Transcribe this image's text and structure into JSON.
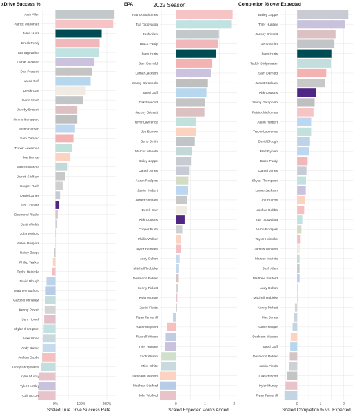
{
  "suptitle": "2022 Season",
  "chart_data": [
    {
      "type": "bar",
      "title": "xDrive Success %",
      "xlabel": "Scaled True Drive Success Rate",
      "ylabel": "",
      "xlim": [
        -0.55,
        2.35
      ],
      "xticks": [
        0,
        1,
        2
      ],
      "xtick_labels": [
        "0%",
        "100%",
        "200%"
      ],
      "categories": [
        "Josh Allen",
        "Patrick Mahomes",
        "Jalen Hurts",
        "Brock Purdy",
        "Tua Tagovailoa",
        "Lamar Jackson",
        "Dak Prescott",
        "Jared Goff",
        "Derek Carr",
        "Geno Smith",
        "Jacoby Brissett",
        "Jimmy Garoppolo",
        "Justin Herbert",
        "Sam Darnold",
        "Trevor Lawrence",
        "Joe Burrow",
        "Marcus Mariota",
        "Jarrett Stidham",
        "Cooper Rush",
        "Daniel Jones",
        "Kirk Cousins",
        "Desmond Ridder",
        "Justin Fields",
        "John Wolford",
        "Aaron Rodgers",
        "Bailey Zappe",
        "Phillip Walker",
        "Taylor Heinicke",
        "David Blough",
        "Matthew Stafford",
        "Gardner Minshew",
        "Kenny Pickett",
        "Sam Howell",
        "Skylar Thompson",
        "Mike White",
        "Andy Dalton",
        "Joshua Dobbs",
        "Teddy Bridgewater",
        "Kyler Murray",
        "Tyler Huntley",
        "Colt McCoy"
      ],
      "values": [
        2.3,
        2.25,
        1.8,
        1.72,
        1.7,
        1.52,
        1.42,
        1.37,
        1.18,
        1.08,
        0.85,
        0.85,
        0.76,
        0.7,
        0.66,
        0.58,
        0.45,
        0.37,
        0.28,
        0.18,
        0.15,
        0.09,
        0.07,
        0.0,
        0.0,
        -0.05,
        -0.1,
        -0.12,
        -0.35,
        -0.38,
        -0.4,
        -0.42,
        -0.44,
        -0.46,
        -0.48,
        -0.5,
        -0.52,
        -0.55,
        -0.65,
        -0.67,
        -0.68
      ],
      "colors": [
        "#c3c8cb",
        "#f7c4c6",
        "#004c54",
        "#f0b8ba",
        "#c0e2e1",
        "#cbc3dd",
        "#c4c4c4",
        "#b7d7ee",
        "#f0ece4",
        "#c2c5c8",
        "#dcc0c2",
        "#bfbfbf",
        "#bcd7ef",
        "#f2b3b2",
        "#c2e0dc",
        "#fcd3c0",
        "#c3d8d7",
        "#c8c8c8",
        "#d0d0d0",
        "#c7cbd6",
        "#4f2683",
        "#d6c3c6",
        "#cdd0d4",
        "#cccccc",
        "#dddddd",
        "#c8ccd2",
        "#fcd3c0",
        "#f2c0c4",
        "#bcd3ea",
        "#b9cce6",
        "#c4dcdc",
        "#d4d4d4",
        "#e3c0c8",
        "#c4e1e1",
        "#cad9de",
        "#c6dbee",
        "#f4c0c0",
        "#c4dede",
        "#e8c4ca",
        "#c9c2dc",
        "#e8c4ca"
      ]
    },
    {
      "type": "bar",
      "title": "EPA",
      "xlabel": "Scaled Expected Points Added",
      "ylabel": "",
      "xlim": [
        -0.55,
        2.1
      ],
      "xticks": [
        0,
        1,
        2
      ],
      "xtick_labels": [
        "0",
        "1",
        "2"
      ],
      "categories": [
        "Patrick Mahomes",
        "Tua Tagovailoa",
        "Josh Allen",
        "Brock Purdy",
        "Jalen Hurts",
        "Sam Darnold",
        "Lamar Jackson",
        "Jimmy Garoppolo",
        "Jared Goff",
        "Dak Prescott",
        "Jacoby Brissett",
        "Trevor Lawrence",
        "Joe Burrow",
        "Geno Smith",
        "Marcus Mariota",
        "Bailey Zappe",
        "Daniel Jones",
        "Aaron Rodgers",
        "Justin Herbert",
        "Jarrett Stidham",
        "Derek Carr",
        "Kirk Cousins",
        "Cooper Rush",
        "Phillip Walker",
        "Taylor Heinicke",
        "Andy Dalton",
        "Mitchell Trubisky",
        "Desmond Ridder",
        "Kenny Pickett",
        "Kyler Murray",
        "Justin Fields",
        "Ryan Tannehill",
        "Baker Mayfield",
        "Russell Wilson",
        "Tyler Huntley",
        "Zach Wilson",
        "Mike White",
        "Deshaun Watson",
        "Matthew Stafford",
        "John Wolford"
      ],
      "values": [
        1.95,
        1.9,
        1.48,
        1.45,
        1.38,
        1.25,
        1.2,
        1.1,
        1.05,
        1.0,
        0.98,
        0.7,
        0.68,
        0.65,
        0.55,
        0.52,
        0.45,
        0.43,
        0.42,
        0.38,
        0.38,
        0.3,
        0.22,
        0.17,
        0.16,
        0.13,
        0.11,
        0.1,
        0.09,
        0.05,
        0.04,
        -0.1,
        -0.3,
        -0.35,
        -0.38,
        -0.5,
        -0.52,
        -0.55,
        -0.55,
        -0.55
      ],
      "colors": [
        "#f7c4c6",
        "#c0e2e1",
        "#c3c8cb",
        "#f0b8ba",
        "#004c54",
        "#f2b3b2",
        "#cbc3dd",
        "#bfbfbf",
        "#b7d7ee",
        "#c4c4c4",
        "#dcc0c2",
        "#c2e0dc",
        "#fcd3c0",
        "#c2c5c8",
        "#c3d8d7",
        "#c8ccd2",
        "#c7cbd6",
        "#d4dcc4",
        "#bcd7ef",
        "#c8c8c8",
        "#f0ece4",
        "#4f2683",
        "#d0d0d0",
        "#fcd3c0",
        "#f2c0c4",
        "#c6dbee",
        "#c6d8ee",
        "#d6c3c6",
        "#d4d4d4",
        "#e8c4ca",
        "#cdd0d4",
        "#c4d4e4",
        "#f6c0c0",
        "#c0cce0",
        "#c9c2dc",
        "#cfe0cc",
        "#cad9de",
        "#fcd3c0",
        "#b9cce6",
        "#e8c4ca"
      ]
    },
    {
      "type": "bar",
      "title": "Completion % over Expected",
      "xlabel": "Scaled Completion % vs. Expected",
      "ylabel": "",
      "xlim": [
        -0.75,
        2.4
      ],
      "xticks": [
        0,
        1,
        2
      ],
      "xtick_labels": [
        "0",
        "1",
        "2"
      ],
      "categories": [
        "Bailey Zappe",
        "Tyler Huntley",
        "Jacoby Brissett",
        "Geno Smith",
        "Jalen Hurts",
        "Teddy Bridgewater",
        "Sam Darnold",
        "Jarrett Stidham",
        "Kirk Cousins",
        "Jimmy Garoppolo",
        "Patrick Mahomes",
        "Justin Herbert",
        "Trevor Lawrence",
        "David Blough",
        "Brett Rypien",
        "Brock Purdy",
        "Daniel Jones",
        "Skylar Thompson",
        "Lamar Jackson",
        "Joe Burrow",
        "Joshua Dobbs",
        "Tua Tagovailoa",
        "Aaron Rodgers",
        "Taylor Heinicke",
        "Jameis Winston",
        "Marcus Mariota",
        "Josh Allen",
        "Matthew Stafford",
        "Andy Dalton",
        "Mitchell Trubisky",
        "Kenny Pickett",
        "Mac Jones",
        "Sam Ehlinger",
        "Deshaun Watson",
        "Jared Goff",
        "Desmond Ridder",
        "Justin Fields",
        "Dak Prescott",
        "Kyler Murray",
        "Ryan Tannehill"
      ],
      "values": [
        2.2,
        2.05,
        1.65,
        1.6,
        1.5,
        1.45,
        1.25,
        1.2,
        0.8,
        0.75,
        0.7,
        0.6,
        0.6,
        0.55,
        0.52,
        0.45,
        0.4,
        0.38,
        0.37,
        0.32,
        0.3,
        0.22,
        0.18,
        0.15,
        0.12,
        0.1,
        0.1,
        0.1,
        0.05,
        0.0,
        -0.1,
        -0.15,
        -0.2,
        -0.28,
        -0.3,
        -0.32,
        -0.35,
        -0.45,
        -0.5,
        -0.55
      ],
      "colors": [
        "#c8ccd2",
        "#c9c2dc",
        "#dcc0c2",
        "#c2c5c8",
        "#004c54",
        "#c4dede",
        "#f2b3b2",
        "#c8c8c8",
        "#4f2683",
        "#bfbfbf",
        "#f7c4c6",
        "#bcd7ef",
        "#c2e0dc",
        "#bcd3ea",
        "#bcd7ef",
        "#f0b8ba",
        "#c7cbd6",
        "#c4e1e1",
        "#cbc3dd",
        "#fcd3c0",
        "#f4c0c0",
        "#c0e2e1",
        "#d4dcc4",
        "#f2c0c4",
        "#f2ece4",
        "#c3d8d7",
        "#c3c8cb",
        "#b9cce6",
        "#c6dbee",
        "#c6d8ee",
        "#d4d4d4",
        "#cdd4dc",
        "#c4d4e4",
        "#fcd3c0",
        "#b7d7ee",
        "#d6c3c6",
        "#cdd0d4",
        "#c4c4c4",
        "#e8c4ca",
        "#c4d4e4"
      ]
    }
  ]
}
